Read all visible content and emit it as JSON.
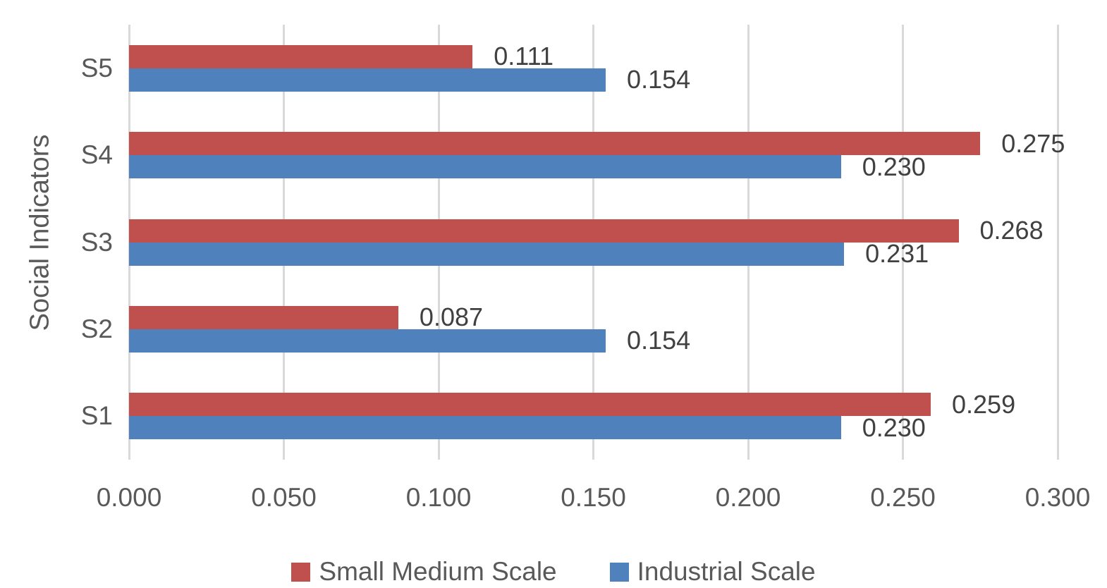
{
  "chart_data": {
    "type": "bar",
    "orientation": "horizontal",
    "title": "",
    "xlabel": "",
    "ylabel": "Social Indicators",
    "xlim": [
      0,
      0.3
    ],
    "xticks": [
      "0.000",
      "0.050",
      "0.100",
      "0.150",
      "0.200",
      "0.250",
      "0.300"
    ],
    "grid": true,
    "legend_position": "bottom",
    "categories": [
      "S1",
      "S2",
      "S3",
      "S4",
      "S5"
    ],
    "row_order_top_to_bottom": [
      "S5",
      "S4",
      "S3",
      "S2",
      "S1"
    ],
    "series": [
      {
        "name": "Small Medium Scale",
        "color": "#C0504D",
        "values": [
          0.259,
          0.087,
          0.268,
          0.275,
          0.111
        ],
        "labels": [
          "0.259",
          "0.087",
          "0.268",
          "0.275",
          "0.111"
        ]
      },
      {
        "name": "Industrial Scale",
        "color": "#4F81BD",
        "values": [
          0.23,
          0.154,
          0.231,
          0.23,
          0.154
        ],
        "labels": [
          "0.230",
          "0.154",
          "0.231",
          "0.230",
          "0.154"
        ]
      }
    ],
    "colors": {
      "gridline": "#D9D9D9",
      "tick_label": "#595959",
      "data_label": "#404040",
      "axis_title": "#595959",
      "legend_text": "#595959",
      "background": "#FFFFFF"
    }
  }
}
